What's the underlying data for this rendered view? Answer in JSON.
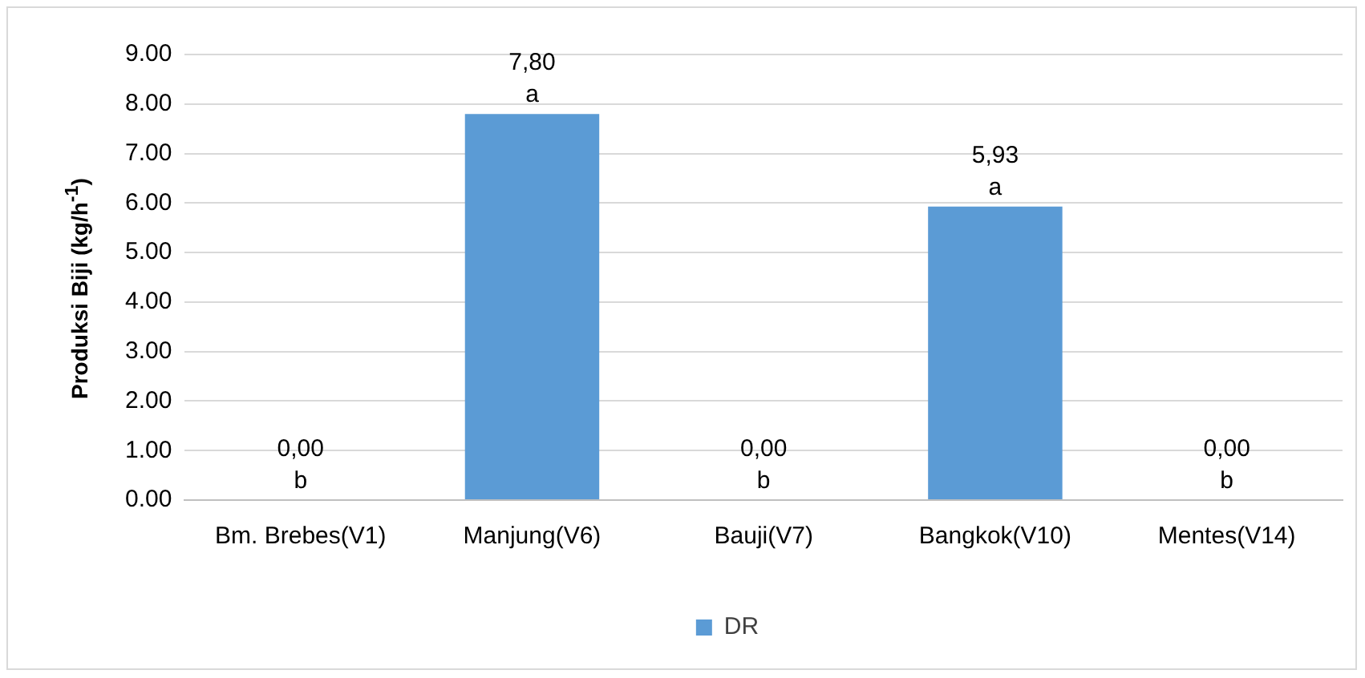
{
  "chart_data": {
    "type": "bar",
    "ylabel": "Produksi Biji (kg/h$^{-1}$)",
    "categories": [
      "Bm. Brebes(V1)",
      "Manjung(V6)",
      "Bauji(V7)",
      "Bangkok(V10)",
      "Mentes(V14)"
    ],
    "series": [
      {
        "name": "DR",
        "color": "#5b9bd5",
        "values": [
          0,
          7.8,
          0,
          5.93,
          0
        ],
        "value_labels": [
          "0,00",
          "7,80",
          "0,00",
          "5,93",
          "0,00"
        ]
      }
    ],
    "ylim": [
      0,
      9
    ],
    "yticks": [
      {
        "value": 0,
        "label": "0.00"
      },
      {
        "value": 1,
        "label": "1.00"
      },
      {
        "value": 2,
        "label": "2.00"
      },
      {
        "value": 3,
        "label": "3.00"
      },
      {
        "value": 4,
        "label": "4.00"
      },
      {
        "value": 5,
        "label": "5.00"
      },
      {
        "value": 6,
        "label": "6.00"
      },
      {
        "value": 7,
        "label": "7.00"
      },
      {
        "value": 8,
        "label": "8.00"
      },
      {
        "value": 9,
        "label": "9.00"
      }
    ],
    "annotations": [
      {
        "text": "b",
        "x": "Bm. Brebes(V1)",
        "y": 0
      },
      {
        "text": "a",
        "x": "Manjung(V6)",
        "y": 7.8
      },
      {
        "text": "b",
        "x": "Bauji(V7)",
        "y": 0
      },
      {
        "text": "a",
        "x": "Bangkok(V10)",
        "y": 5.93
      },
      {
        "text": "b",
        "x": "Mentes(V14)",
        "y": 0
      }
    ],
    "grid": "y",
    "legend": "bottom"
  }
}
